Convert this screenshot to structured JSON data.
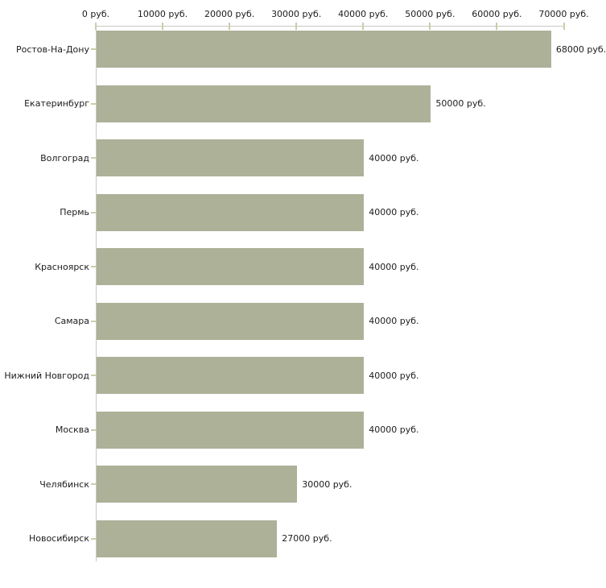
{
  "chart_data": {
    "type": "bar",
    "orientation": "horizontal",
    "categories": [
      "Ростов-На-Дону",
      "Екатеринбург",
      "Волгоград",
      "Пермь",
      "Красноярск",
      "Самара",
      "Нижний Новгород",
      "Москва",
      "Челябинск",
      "Новосибирск"
    ],
    "values": [
      68000,
      50000,
      40000,
      40000,
      40000,
      40000,
      40000,
      40000,
      30000,
      27000
    ],
    "value_labels": [
      "68000 руб.",
      "50000 руб.",
      "40000 руб.",
      "40000 руб.",
      "40000 руб.",
      "40000 руб.",
      "40000 руб.",
      "40000 руб.",
      "30000 руб.",
      "27000 руб."
    ],
    "x_tick_values": [
      0,
      10000,
      20000,
      30000,
      40000,
      50000,
      60000,
      70000
    ],
    "x_tick_labels": [
      "0 руб.",
      "10000 руб.",
      "20000 руб.",
      "30000 руб.",
      "40000 руб.",
      "50000 руб.",
      "60000 руб.",
      "70000 руб."
    ],
    "xlim": [
      0,
      70000
    ],
    "unit": "руб.",
    "grid": false,
    "legend_position": "none",
    "colors": {
      "bar": "#acb198",
      "axis_line": "#c8c8c8",
      "tick": "#cfcba8",
      "text": "#1c1c1c",
      "background": "#ffffff"
    }
  }
}
